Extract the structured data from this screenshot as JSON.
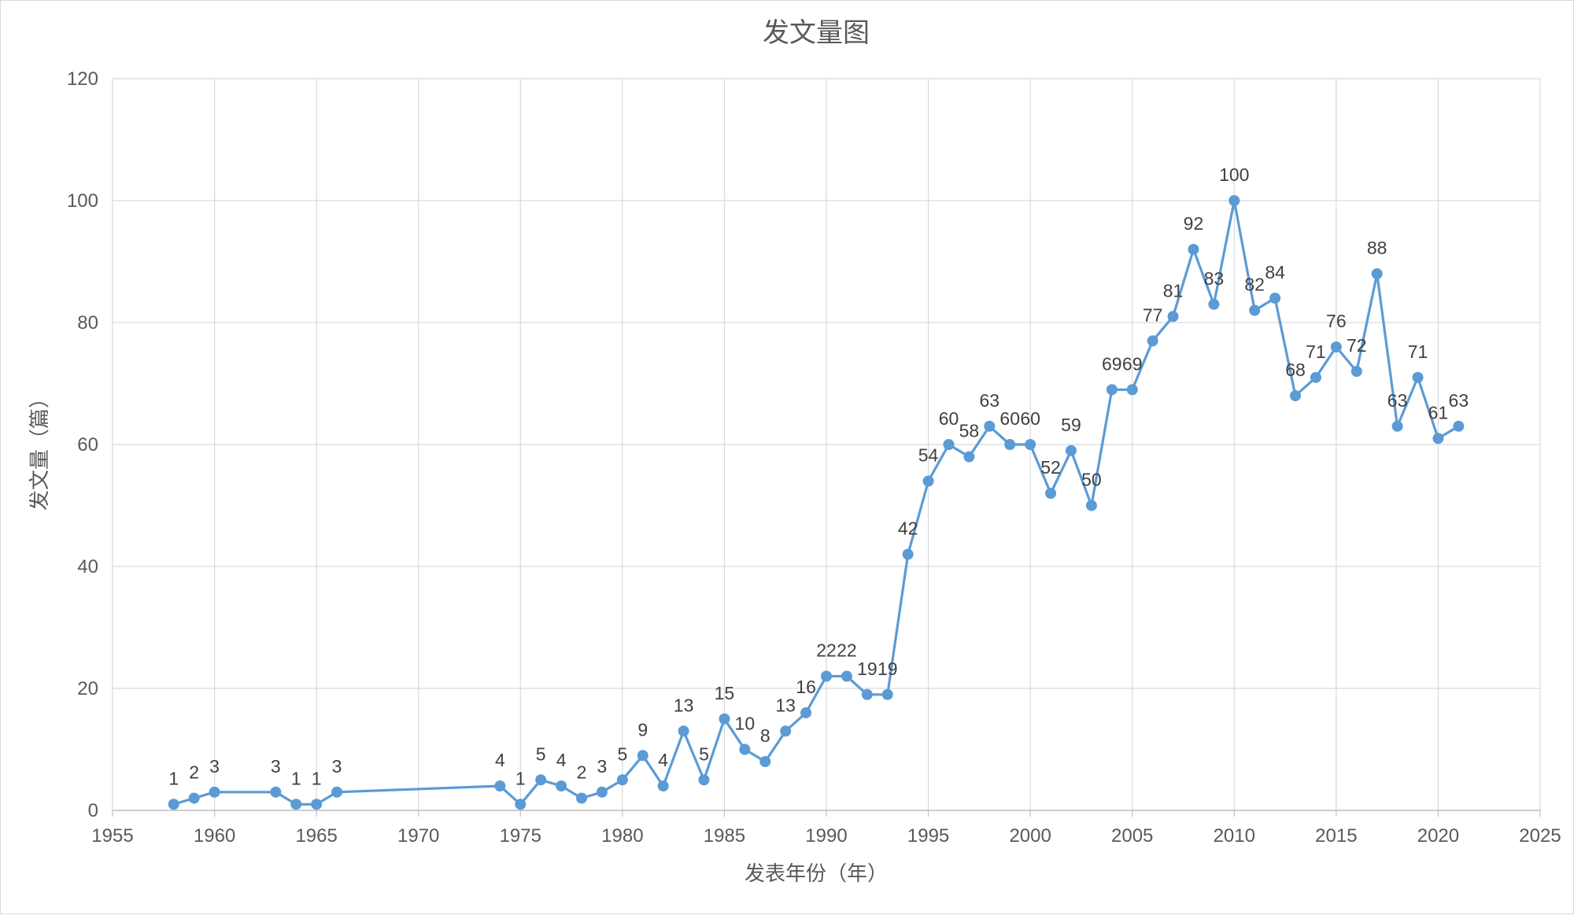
{
  "chart_data": {
    "type": "scatter",
    "title": "发文量图",
    "xlabel": "发表年份（年）",
    "ylabel": "发文量（篇）",
    "xlim": [
      1955,
      2025
    ],
    "ylim": [
      0,
      120
    ],
    "xticks": [
      1955,
      1960,
      1965,
      1970,
      1975,
      1980,
      1985,
      1990,
      1995,
      2000,
      2005,
      2010,
      2015,
      2020,
      2025
    ],
    "yticks": [
      0,
      20,
      40,
      60,
      80,
      100,
      120
    ],
    "grid": true,
    "legend": "none",
    "line_color": "#5b9bd5",
    "marker_color": "#5b9bd5",
    "series": [
      {
        "x": [
          1958,
          1959,
          1960,
          1963,
          1964,
          1965,
          1966,
          1974,
          1975,
          1976,
          1977,
          1978,
          1979,
          1980,
          1981,
          1982,
          1983,
          1984,
          1985,
          1986,
          1987,
          1988,
          1989,
          1990,
          1991,
          1992,
          1993,
          1994,
          1995,
          1996,
          1997,
          1998,
          1999,
          2000,
          2001,
          2002,
          2003,
          2004,
          2005,
          2006,
          2007,
          2008,
          2009,
          2010,
          2011,
          2012,
          2013,
          2014,
          2015,
          2016,
          2017,
          2018,
          2019,
          2020,
          2021
        ],
        "y": [
          1,
          2,
          3,
          3,
          1,
          1,
          3,
          4,
          1,
          5,
          4,
          2,
          3,
          5,
          9,
          4,
          13,
          5,
          15,
          10,
          8,
          13,
          16,
          22,
          22,
          19,
          19,
          42,
          54,
          60,
          58,
          63,
          60,
          60,
          52,
          59,
          50,
          69,
          69,
          77,
          81,
          92,
          83,
          100,
          82,
          84,
          68,
          71,
          76,
          72,
          88,
          63,
          71,
          61,
          63
        ],
        "labels": [
          "1",
          "2",
          "3",
          "3",
          "1",
          "1",
          "3",
          "4",
          "1",
          "5",
          "4",
          "2",
          "3",
          "5",
          "9",
          "4",
          "13",
          "5",
          "15",
          "10",
          "8",
          "13",
          "16",
          "22",
          "22",
          "19",
          "19",
          "42",
          "54",
          "60",
          "58",
          "63",
          "60",
          "60",
          "52",
          "59",
          "50",
          "69",
          "69",
          "77",
          "81",
          "92",
          "83",
          "100",
          "82",
          "84",
          "68",
          "71",
          "76",
          "72",
          "88",
          "63",
          "71",
          "61",
          "63"
        ]
      }
    ]
  }
}
